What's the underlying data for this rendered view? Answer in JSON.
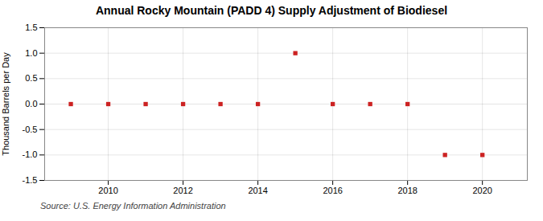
{
  "chart_data": {
    "type": "scatter",
    "title": "Annual Rocky Mountain (PADD 4) Supply Adjustment of Biodiesel",
    "ylabel": "Thousand Barrels per Day",
    "annotation": "Source: U.S. Energy Information Administration",
    "x": [
      2009,
      2010,
      2011,
      2012,
      2013,
      2014,
      2015,
      2016,
      2017,
      2018,
      2019,
      2020
    ],
    "values": [
      0.0,
      0.0,
      0.0,
      0.0,
      0.0,
      0.0,
      1.0,
      0.0,
      0.0,
      0.0,
      -1.0,
      -1.0
    ],
    "color": "#cc2222",
    "marker": "square",
    "xlim": [
      2008.3,
      2021.2
    ],
    "xticks": [
      2010,
      2012,
      2014,
      2016,
      2018,
      2020
    ],
    "ylim": [
      -1.5,
      1.5
    ],
    "yticks": [
      -1.5,
      {
        "value": -1.0,
        "label": "-1.0"
      },
      -0.5,
      {
        "value": 0.0,
        "label": "0.0"
      },
      0.5,
      {
        "value": 1.0,
        "label": "1.0"
      },
      1.5
    ],
    "grid": true
  }
}
